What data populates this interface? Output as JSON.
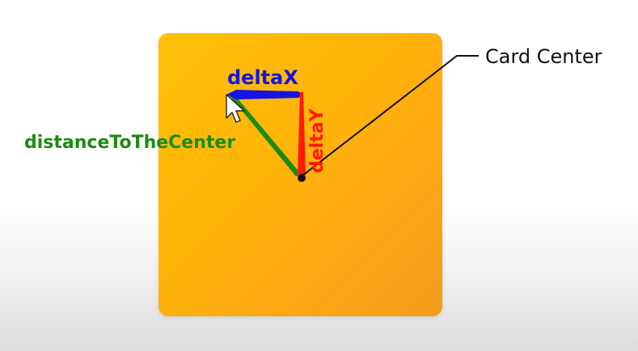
{
  "diagram": {
    "labels": {
      "delta_x": "deltaX",
      "delta_y": "deltaY",
      "distance": "distanceToTheCenter",
      "card_center": "Card Center"
    },
    "colors": {
      "card": "#ffb30a",
      "delta_x": "#1414e6",
      "delta_y": "#ff1a00",
      "distance": "#1d8a12",
      "leader_line": "#111111",
      "center_dot": "#111111"
    },
    "icons": {
      "cursor": "mouse-pointer-arrow-icon"
    }
  }
}
